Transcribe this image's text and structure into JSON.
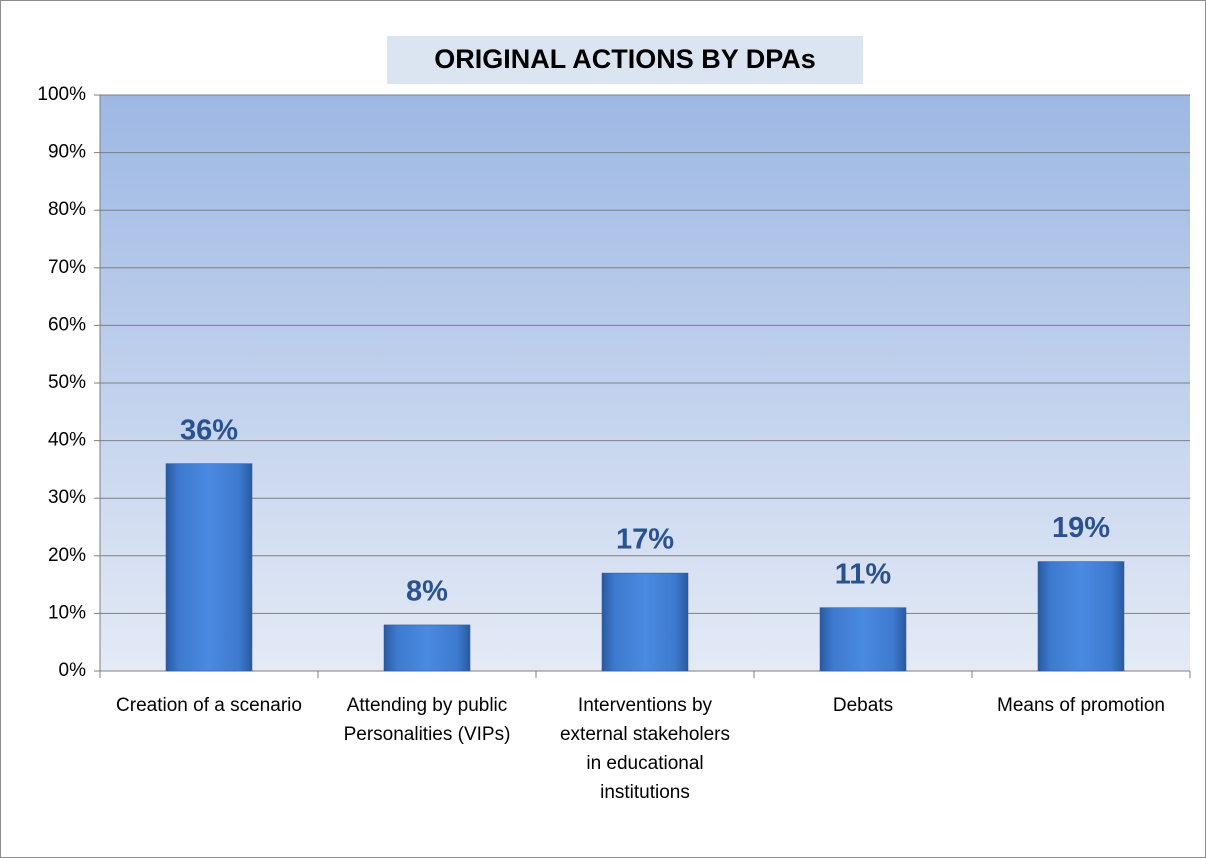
{
  "chart_data": {
    "type": "bar",
    "title": "ORIGINAL ACTIONS BY DPAs",
    "categories": [
      "Creation of a scenario",
      "Attending by public Personalities (VIPs)",
      "Interventions by external stakeholers in educational institutions",
      "Debats",
      "Means of promotion"
    ],
    "values": [
      36,
      8,
      17,
      11,
      19
    ],
    "value_labels": [
      "36%",
      "8%",
      "17%",
      "11%",
      "19%"
    ],
    "color": "#3b78cf",
    "ylim": [
      0,
      100
    ],
    "yticks": [
      {
        "value": 0,
        "label": "0%"
      },
      {
        "value": 10,
        "label": "10%"
      },
      {
        "value": 20,
        "label": "20%"
      },
      {
        "value": 30,
        "label": "30%"
      },
      {
        "value": 40,
        "label": "40%"
      },
      {
        "value": 50,
        "label": "50%"
      },
      {
        "value": 60,
        "label": "60%"
      },
      {
        "value": 70,
        "label": "70%"
      },
      {
        "value": 80,
        "label": "80%"
      },
      {
        "value": 90,
        "label": "90%"
      },
      {
        "value": 100,
        "label": "100%"
      }
    ],
    "grid": true
  }
}
